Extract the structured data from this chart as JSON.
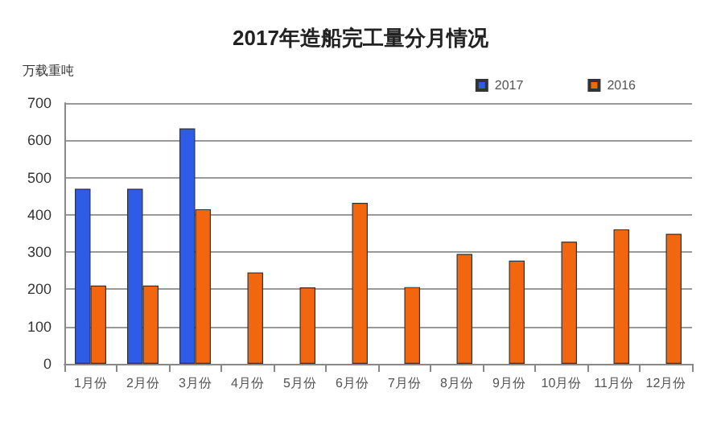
{
  "chart_data": {
    "type": "bar",
    "title": "2017年造船完工量分月情况",
    "ylabel": "万载重吨",
    "categories": [
      "1月份",
      "2月份",
      "3月份",
      "4月份",
      "5月份",
      "6月份",
      "7月份",
      "8月份",
      "9月份",
      "10月份",
      "11月份",
      "12月份"
    ],
    "series": [
      {
        "name": "2017",
        "color": "#2e5ce6",
        "values": [
          470,
          470,
          632,
          null,
          null,
          null,
          null,
          null,
          null,
          null,
          null,
          null
        ]
      },
      {
        "name": "2016",
        "color": "#f2660f",
        "values": [
          210,
          210,
          415,
          245,
          205,
          432,
          206,
          295,
          277,
          328,
          361,
          349
        ]
      }
    ],
    "ylim": [
      0,
      700
    ],
    "yticks": [
      0,
      100,
      200,
      300,
      400,
      500,
      600,
      700
    ],
    "grid": "y",
    "legend": "top right"
  }
}
